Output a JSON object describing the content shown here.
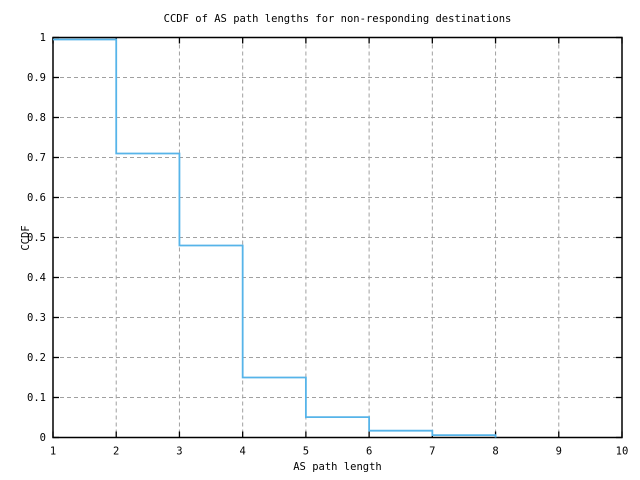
{
  "chart_data": {
    "type": "line",
    "style": "step-post",
    "title": "CCDF of AS path lengths for non-responding destinations",
    "xlabel": "AS path length",
    "ylabel": "CCDF",
    "x": [
      1,
      2,
      3,
      4,
      5,
      6,
      7,
      8
    ],
    "y": [
      0.995,
      0.71,
      0.48,
      0.15,
      0.051,
      0.017,
      0.006,
      0
    ],
    "xlim": [
      1,
      10
    ],
    "ylim": [
      0,
      1
    ],
    "xticks": [
      1,
      2,
      3,
      4,
      5,
      6,
      7,
      8,
      9,
      10
    ],
    "xtick_labels": [
      "1",
      "2",
      "3",
      "4",
      "5",
      "6",
      "7",
      "8",
      "9",
      "10"
    ],
    "yticks": [
      0,
      0.1,
      0.2,
      0.3,
      0.4,
      0.5,
      0.6,
      0.7,
      0.8,
      0.9,
      1
    ],
    "ytick_labels": [
      "0",
      "0.1",
      "0.2",
      "0.3",
      "0.4",
      "0.5",
      "0.6",
      "0.7",
      "0.8",
      "0.9",
      "1"
    ],
    "grid": true,
    "legend": "none",
    "line_color": "#56b4e9",
    "grid_color": "#a0a0a0",
    "border_color": "#000000",
    "background_color": "#ffffff"
  }
}
